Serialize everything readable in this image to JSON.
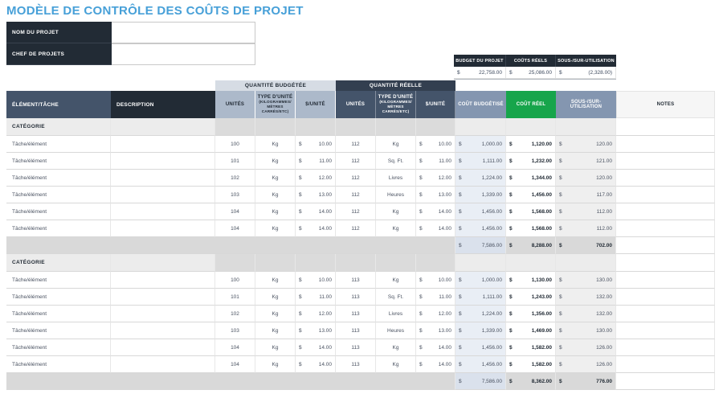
{
  "title": "MODÈLE DE CONTRÔLE DES COÛTS DE PROJET",
  "form": {
    "project_name_label": "NOM DU PROJET",
    "project_name_value": "",
    "manager_label": "CHEF DE PROJETS",
    "manager_value": ""
  },
  "summary": {
    "columns": [
      "BUDGET DU PROJET",
      "COÛTS RÉELS",
      "SOUS-/SUR-UTILISATION"
    ],
    "currency": "$",
    "values": [
      "22,758.00",
      "25,086.00",
      "(2,328.00)"
    ]
  },
  "table": {
    "currency": "$",
    "group_headers": {
      "budgeted": "QUANTITÉ BUDGÉTÉE",
      "actual": "QUANTITÉ RÉELLE"
    },
    "columns": {
      "element": "ÉLÉMENT/TÂCHE",
      "description": "DESCRIPTION",
      "units": "UNITÉS",
      "unit_type": "TYPE D'UNITÉ",
      "unit_type_note": "(KILOGRAMMES/ MÈTRES CARRÉS/ETC)",
      "unit_cost": "$/UNITÉ",
      "budgeted_cost": "COÛT BUDGÉTISÉ",
      "actual_cost": "COÛT RÉEL",
      "variance": "SOUS-/SUR-UTILISATION",
      "notes": "NOTES"
    },
    "sections": [
      {
        "category_label": "CATÉGORIE",
        "rows": [
          {
            "element": "Tâche/élément",
            "description": "",
            "b_units": "100",
            "b_type": "Kg",
            "b_rate": "10.00",
            "a_units": "112",
            "a_type": "Kg",
            "a_rate": "10.00",
            "budget": "1,000.00",
            "actual": "1,120.00",
            "variance": "120.00",
            "notes": ""
          },
          {
            "element": "Tâche/élément",
            "description": "",
            "b_units": "101",
            "b_type": "Kg",
            "b_rate": "11.00",
            "a_units": "112",
            "a_type": "Sq. Ft.",
            "a_rate": "11.00",
            "budget": "1,111.00",
            "actual": "1,232.00",
            "variance": "121.00",
            "notes": ""
          },
          {
            "element": "Tâche/élément",
            "description": "",
            "b_units": "102",
            "b_type": "Kg",
            "b_rate": "12.00",
            "a_units": "112",
            "a_type": "Livres",
            "a_rate": "12.00",
            "budget": "1,224.00",
            "actual": "1,344.00",
            "variance": "120.00",
            "notes": ""
          },
          {
            "element": "Tâche/élément",
            "description": "",
            "b_units": "103",
            "b_type": "Kg",
            "b_rate": "13.00",
            "a_units": "112",
            "a_type": "Heures",
            "a_rate": "13.00",
            "budget": "1,339.00",
            "actual": "1,456.00",
            "variance": "117.00",
            "notes": ""
          },
          {
            "element": "Tâche/élément",
            "description": "",
            "b_units": "104",
            "b_type": "Kg",
            "b_rate": "14.00",
            "a_units": "112",
            "a_type": "Kg",
            "a_rate": "14.00",
            "budget": "1,456.00",
            "actual": "1,568.00",
            "variance": "112.00",
            "notes": ""
          },
          {
            "element": "Tâche/élément",
            "description": "",
            "b_units": "104",
            "b_type": "Kg",
            "b_rate": "14.00",
            "a_units": "112",
            "a_type": "Kg",
            "a_rate": "14.00",
            "budget": "1,456.00",
            "actual": "1,568.00",
            "variance": "112.00",
            "notes": ""
          }
        ],
        "subtotal": {
          "budget": "7,586.00",
          "actual": "8,288.00",
          "variance": "702.00"
        }
      },
      {
        "category_label": "CATÉGORIE",
        "rows": [
          {
            "element": "Tâche/élément",
            "description": "",
            "b_units": "100",
            "b_type": "Kg",
            "b_rate": "10.00",
            "a_units": "113",
            "a_type": "Kg",
            "a_rate": "10.00",
            "budget": "1,000.00",
            "actual": "1,130.00",
            "variance": "130.00",
            "notes": ""
          },
          {
            "element": "Tâche/élément",
            "description": "",
            "b_units": "101",
            "b_type": "Kg",
            "b_rate": "11.00",
            "a_units": "113",
            "a_type": "Sq. Ft.",
            "a_rate": "11.00",
            "budget": "1,111.00",
            "actual": "1,243.00",
            "variance": "132.00",
            "notes": ""
          },
          {
            "element": "Tâche/élément",
            "description": "",
            "b_units": "102",
            "b_type": "Kg",
            "b_rate": "12.00",
            "a_units": "113",
            "a_type": "Livres",
            "a_rate": "12.00",
            "budget": "1,224.00",
            "actual": "1,356.00",
            "variance": "132.00",
            "notes": ""
          },
          {
            "element": "Tâche/élément",
            "description": "",
            "b_units": "103",
            "b_type": "Kg",
            "b_rate": "13.00",
            "a_units": "113",
            "a_type": "Heures",
            "a_rate": "13.00",
            "budget": "1,339.00",
            "actual": "1,469.00",
            "variance": "130.00",
            "notes": ""
          },
          {
            "element": "Tâche/élément",
            "description": "",
            "b_units": "104",
            "b_type": "Kg",
            "b_rate": "14.00",
            "a_units": "113",
            "a_type": "Kg",
            "a_rate": "14.00",
            "budget": "1,456.00",
            "actual": "1,582.00",
            "variance": "126.00",
            "notes": ""
          },
          {
            "element": "Tâche/élément",
            "description": "",
            "b_units": "104",
            "b_type": "Kg",
            "b_rate": "14.00",
            "a_units": "113",
            "a_type": "Kg",
            "a_rate": "14.00",
            "budget": "1,456.00",
            "actual": "1,582.00",
            "variance": "126.00",
            "notes": ""
          }
        ],
        "subtotal": {
          "budget": "7,586.00",
          "actual": "8,362.00",
          "variance": "776.00"
        }
      }
    ]
  },
  "colors": {
    "title_blue": "#47A0D8",
    "dark_navy": "#222B35",
    "navy": "#333F50",
    "slate": "#44546A",
    "slate_light": "#8496B0",
    "header_steel": "#ACB9CA",
    "group_light": "#D6DCE4",
    "green": "#17A54B",
    "budget_cell": "#E9EEF5",
    "variance_cell": "#EFEFEF",
    "subtotal_gray": "#D9D9D9"
  }
}
